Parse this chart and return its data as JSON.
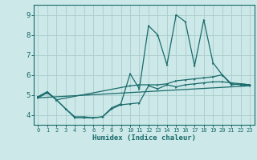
{
  "bg_color": "#cce8e8",
  "grid_color": "#aacccc",
  "line_color": "#1a6b6b",
  "xlabel": "Humidex (Indice chaleur)",
  "xlim": [
    -0.5,
    23.5
  ],
  "ylim": [
    3.5,
    9.5
  ],
  "yticks": [
    4,
    5,
    6,
    7,
    8,
    9
  ],
  "xticks": [
    0,
    1,
    2,
    3,
    4,
    5,
    6,
    7,
    8,
    9,
    10,
    11,
    12,
    13,
    14,
    15,
    16,
    17,
    18,
    19,
    20,
    21,
    22,
    23
  ],
  "series": [
    {
      "x": [
        0,
        1,
        2,
        10,
        11,
        12,
        13,
        14,
        15,
        16,
        17,
        18,
        19,
        20,
        21,
        22,
        23
      ],
      "y": [
        4.9,
        5.15,
        4.75,
        5.45,
        5.5,
        5.5,
        5.5,
        5.55,
        5.7,
        5.75,
        5.8,
        5.85,
        5.9,
        6.0,
        5.55,
        5.5,
        5.45
      ]
    },
    {
      "x": [
        0,
        1,
        2,
        3,
        4,
        5,
        6,
        7,
        8,
        9,
        10,
        11,
        12,
        13,
        14,
        15,
        16,
        17,
        18,
        19,
        20,
        21,
        22,
        23
      ],
      "y": [
        4.9,
        5.15,
        4.75,
        4.3,
        3.9,
        3.9,
        3.85,
        3.9,
        4.35,
        4.55,
        6.05,
        5.3,
        8.45,
        8.0,
        6.5,
        9.0,
        8.65,
        6.45,
        8.75,
        6.6,
        6.0,
        5.5,
        5.55,
        5.5
      ]
    },
    {
      "x": [
        0,
        1,
        2,
        3,
        4,
        5,
        6,
        7,
        8,
        9,
        10,
        11,
        12,
        13,
        14,
        15,
        16,
        17,
        18,
        19,
        20,
        21,
        22,
        23
      ],
      "y": [
        4.85,
        5.1,
        4.75,
        4.3,
        3.85,
        3.85,
        3.85,
        3.9,
        4.3,
        4.5,
        4.55,
        4.6,
        5.45,
        5.3,
        5.5,
        5.4,
        5.5,
        5.55,
        5.6,
        5.65,
        5.65,
        5.6,
        5.55,
        5.5
      ]
    },
    {
      "x": [
        0,
        23
      ],
      "y": [
        4.85,
        5.45
      ]
    }
  ]
}
